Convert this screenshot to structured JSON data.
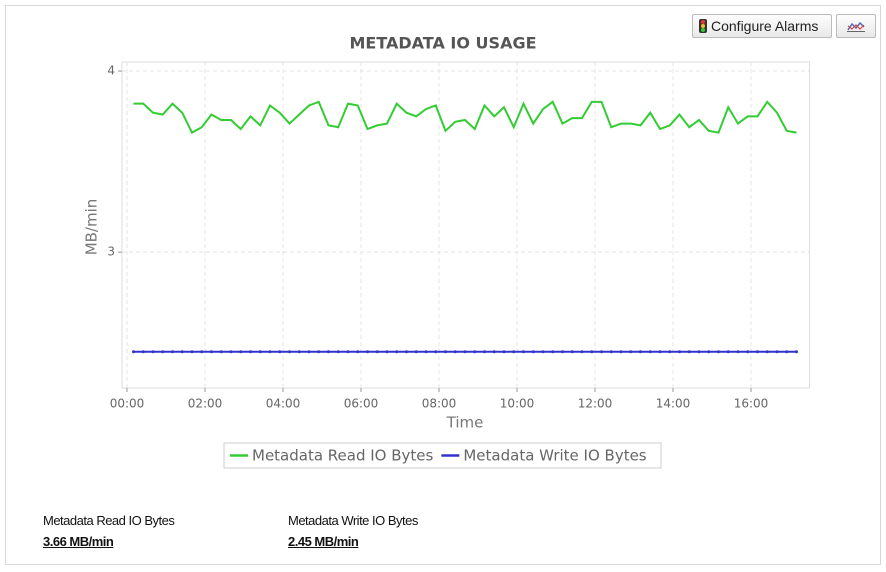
{
  "buttons": {
    "configure_alarms": "Configure Alarms"
  },
  "chart_data": {
    "type": "line",
    "title": "METADATA IO USAGE",
    "x_label": "Time",
    "y_label": "MB/min",
    "x": [
      "00:10",
      "00:25",
      "00:40",
      "00:55",
      "01:10",
      "01:25",
      "01:40",
      "01:55",
      "02:10",
      "02:25",
      "02:40",
      "02:55",
      "03:10",
      "03:25",
      "03:40",
      "03:55",
      "04:10",
      "04:25",
      "04:40",
      "04:55",
      "05:10",
      "05:25",
      "05:40",
      "05:55",
      "06:10",
      "06:25",
      "06:40",
      "06:55",
      "07:10",
      "07:25",
      "07:40",
      "07:55",
      "08:10",
      "08:25",
      "08:40",
      "08:55",
      "09:10",
      "09:25",
      "09:40",
      "09:55",
      "10:10",
      "10:25",
      "10:40",
      "10:55",
      "11:10",
      "11:25",
      "11:40",
      "11:55",
      "12:10",
      "12:25",
      "12:40",
      "12:55",
      "13:10",
      "13:25",
      "13:40",
      "13:55",
      "14:10",
      "14:25",
      "14:40",
      "14:55",
      "15:10",
      "15:25",
      "15:40",
      "15:55",
      "16:10",
      "16:25",
      "16:40",
      "16:55",
      "17:10"
    ],
    "series": [
      {
        "name": "Metadata Read IO Bytes",
        "color": "#33cc33",
        "markers": false,
        "values": [
          3.82,
          3.82,
          3.77,
          3.76,
          3.82,
          3.77,
          3.66,
          3.69,
          3.76,
          3.73,
          3.73,
          3.68,
          3.75,
          3.7,
          3.81,
          3.77,
          3.71,
          3.76,
          3.81,
          3.83,
          3.7,
          3.69,
          3.82,
          3.81,
          3.68,
          3.7,
          3.71,
          3.82,
          3.77,
          3.75,
          3.79,
          3.81,
          3.67,
          3.72,
          3.73,
          3.68,
          3.81,
          3.75,
          3.8,
          3.69,
          3.82,
          3.71,
          3.79,
          3.83,
          3.71,
          3.74,
          3.74,
          3.83,
          3.83,
          3.69,
          3.71,
          3.71,
          3.7,
          3.77,
          3.68,
          3.7,
          3.76,
          3.69,
          3.73,
          3.67,
          3.66,
          3.8,
          3.71,
          3.75,
          3.75,
          3.83,
          3.77,
          3.67,
          3.66
        ]
      },
      {
        "name": "Metadata Write IO Bytes",
        "color": "#3333cc",
        "markers": true,
        "values": [
          2.45,
          2.45,
          2.45,
          2.45,
          2.45,
          2.45,
          2.45,
          2.45,
          2.45,
          2.45,
          2.45,
          2.45,
          2.45,
          2.45,
          2.45,
          2.45,
          2.45,
          2.45,
          2.45,
          2.45,
          2.45,
          2.45,
          2.45,
          2.45,
          2.45,
          2.45,
          2.45,
          2.45,
          2.45,
          2.45,
          2.45,
          2.45,
          2.45,
          2.45,
          2.45,
          2.45,
          2.45,
          2.45,
          2.45,
          2.45,
          2.45,
          2.45,
          2.45,
          2.45,
          2.45,
          2.45,
          2.45,
          2.45,
          2.45,
          2.45,
          2.45,
          2.45,
          2.45,
          2.45,
          2.45,
          2.45,
          2.45,
          2.45,
          2.45,
          2.45,
          2.45,
          2.45,
          2.45,
          2.45,
          2.45,
          2.45,
          2.45,
          2.45,
          2.45
        ]
      }
    ],
    "xlim": [
      "00:00",
      "17:30"
    ],
    "xticks": [
      "00:00",
      "02:00",
      "04:00",
      "06:00",
      "08:00",
      "10:00",
      "12:00",
      "14:00",
      "16:00"
    ],
    "ylim": [
      2.25,
      4.05
    ],
    "yticks": [
      3,
      4
    ],
    "grid": true
  },
  "summary": [
    {
      "label": "Metadata Read IO Bytes",
      "value": "3.66 MB/min"
    },
    {
      "label": "Metadata Write IO Bytes",
      "value": "2.45 MB/min"
    }
  ]
}
